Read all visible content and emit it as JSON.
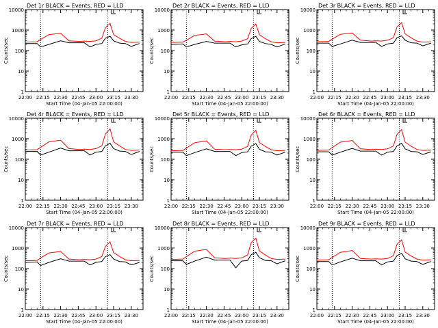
{
  "page": {
    "background": "#ffffff"
  },
  "colors": {
    "events": "#000000",
    "lld": "#ff0000",
    "axis": "#000000"
  },
  "chart_data": [
    {
      "type": "line",
      "title": "Det 1r BLACK = Events, RED = LLD",
      "xlabel": "Start Time (04-Jan-05 22:00:00)",
      "ylabel": "Counts/sec",
      "x": [
        "22:00",
        "22:10",
        "22:13",
        "22:20",
        "22:30",
        "22:37",
        "22:46",
        "22:50",
        "22:55",
        "23:00",
        "23:05",
        "23:08",
        "23:12",
        "23:15",
        "23:20",
        "23:25",
        "23:30",
        "23:37"
      ],
      "series": [
        {
          "name": "Events",
          "color": "#000000",
          "values": [
            220,
            220,
            150,
            200,
            300,
            240,
            240,
            240,
            150,
            200,
            220,
            400,
            500,
            300,
            230,
            220,
            160,
            220
          ]
        },
        {
          "name": "LLD",
          "color": "#ff0000",
          "values": [
            260,
            270,
            350,
            600,
            700,
            300,
            280,
            290,
            280,
            300,
            400,
            1300,
            2100,
            600,
            400,
            280,
            250,
            260
          ]
        }
      ],
      "ylim": [
        1,
        10000
      ],
      "ylog": true,
      "yticks": [
        "1",
        "10",
        "100",
        "1000",
        "10000"
      ],
      "xticks": [
        "22:00",
        "22:15",
        "22:30",
        "22:45",
        "23:00",
        "23:15",
        "23:30"
      ],
      "vlines": [
        "22:13",
        "23:10"
      ],
      "grid": false
    },
    {
      "type": "line",
      "title": "Det 2r BLACK = Events, RED = LLD",
      "xlabel": "Start Time (04-Jan-05 22:00:00)",
      "ylabel": "Counts/sec",
      "x": [
        "22:00",
        "22:10",
        "22:13",
        "22:20",
        "22:30",
        "22:37",
        "22:46",
        "22:50",
        "22:55",
        "23:00",
        "23:05",
        "23:08",
        "23:12",
        "23:15",
        "23:20",
        "23:25",
        "23:30",
        "23:37"
      ],
      "series": [
        {
          "name": "Events",
          "color": "#000000",
          "values": [
            200,
            210,
            150,
            200,
            280,
            230,
            230,
            230,
            150,
            190,
            210,
            380,
            500,
            280,
            220,
            200,
            150,
            210
          ]
        },
        {
          "name": "LLD",
          "color": "#ff0000",
          "values": [
            250,
            260,
            320,
            550,
            650,
            290,
            270,
            280,
            270,
            290,
            380,
            1200,
            2000,
            600,
            380,
            270,
            240,
            250
          ]
        }
      ],
      "ylim": [
        1,
        10000
      ],
      "ylog": true,
      "yticks": [
        "1",
        "10",
        "100",
        "1000",
        "10000"
      ],
      "xticks": [
        "22:00",
        "22:15",
        "22:30",
        "22:45",
        "23:00",
        "23:15",
        "23:30"
      ],
      "vlines": [
        "22:13",
        "23:10"
      ],
      "grid": false
    },
    {
      "type": "line",
      "title": "Det 3r BLACK = Events, RED = LLD",
      "xlabel": "Start Time (04-Jan-05 22:00:00)",
      "ylabel": "Counts/sec",
      "x": [
        "22:00",
        "22:10",
        "22:13",
        "22:20",
        "22:30",
        "22:37",
        "22:46",
        "22:50",
        "22:55",
        "23:00",
        "23:05",
        "23:08",
        "23:12",
        "23:15",
        "23:20",
        "23:25",
        "23:30",
        "23:37"
      ],
      "series": [
        {
          "name": "Events",
          "color": "#000000",
          "values": [
            230,
            230,
            160,
            210,
            320,
            250,
            250,
            250,
            160,
            210,
            230,
            420,
            520,
            320,
            240,
            230,
            170,
            230
          ]
        },
        {
          "name": "LLD",
          "color": "#ff0000",
          "values": [
            270,
            280,
            360,
            620,
            720,
            320,
            290,
            300,
            290,
            320,
            420,
            1400,
            2300,
            650,
            420,
            290,
            260,
            270
          ]
        }
      ],
      "ylim": [
        1,
        10000
      ],
      "ylog": true,
      "yticks": [
        "1",
        "10",
        "100",
        "1000",
        "10000"
      ],
      "xticks": [
        "22:00",
        "22:15",
        "22:30",
        "22:45",
        "23:00",
        "23:15",
        "23:30"
      ],
      "vlines": [
        "22:13",
        "23:10"
      ],
      "grid": false
    },
    {
      "type": "line",
      "title": "Det 4r BLACK = Events, RED = LLD",
      "xlabel": "Start Time (04-Jan-05 22:00:00)",
      "ylabel": "Counts/sec",
      "x": [
        "22:00",
        "22:10",
        "22:13",
        "22:20",
        "22:30",
        "22:37",
        "22:46",
        "22:50",
        "22:55",
        "23:00",
        "23:05",
        "23:08",
        "23:12",
        "23:15",
        "23:20",
        "23:25",
        "23:30",
        "23:37"
      ],
      "series": [
        {
          "name": "Events",
          "color": "#000000",
          "values": [
            240,
            240,
            160,
            220,
            350,
            260,
            260,
            260,
            160,
            220,
            240,
            450,
            600,
            330,
            250,
            240,
            170,
            240
          ]
        },
        {
          "name": "LLD",
          "color": "#ff0000",
          "values": [
            280,
            290,
            380,
            700,
            850,
            330,
            300,
            310,
            300,
            330,
            450,
            1700,
            3000,
            700,
            450,
            300,
            270,
            280
          ]
        }
      ],
      "ylim": [
        1,
        10000
      ],
      "ylog": true,
      "yticks": [
        "1",
        "10",
        "100",
        "1000",
        "10000"
      ],
      "xticks": [
        "22:00",
        "22:15",
        "22:30",
        "22:45",
        "23:00",
        "23:15",
        "23:30"
      ],
      "vlines": [
        "22:13",
        "23:10"
      ],
      "grid": false
    },
    {
      "type": "line",
      "title": "Det 5r BLACK = Events, RED = LLD",
      "xlabel": "Start Time (04-Jan-05 22:00:00)",
      "ylabel": "Counts/sec",
      "x": [
        "22:00",
        "22:10",
        "22:13",
        "22:20",
        "22:30",
        "22:37",
        "22:46",
        "22:50",
        "22:55",
        "23:00",
        "23:05",
        "23:08",
        "23:12",
        "23:15",
        "23:20",
        "23:25",
        "23:30",
        "23:37"
      ],
      "series": [
        {
          "name": "Events",
          "color": "#000000",
          "values": [
            220,
            220,
            150,
            210,
            320,
            240,
            240,
            240,
            150,
            210,
            230,
            430,
            580,
            310,
            230,
            220,
            160,
            220
          ]
        },
        {
          "name": "LLD",
          "color": "#ff0000",
          "values": [
            260,
            270,
            350,
            640,
            780,
            310,
            290,
            300,
            290,
            310,
            420,
            1500,
            2600,
            650,
            420,
            290,
            260,
            270
          ]
        }
      ],
      "ylim": [
        1,
        10000
      ],
      "ylog": true,
      "yticks": [
        "1",
        "10",
        "100",
        "1000",
        "10000"
      ],
      "xticks": [
        "22:00",
        "22:15",
        "22:30",
        "22:45",
        "23:00",
        "23:15",
        "23:30"
      ],
      "vlines": [
        "22:13",
        "23:10"
      ],
      "grid": false
    },
    {
      "type": "line",
      "title": "Det 6r BLACK = Events, RED = LLD",
      "xlabel": "Start Time (04-Jan-05 22:00:00)",
      "ylabel": "Counts/sec",
      "x": [
        "22:00",
        "22:10",
        "22:13",
        "22:20",
        "22:30",
        "22:37",
        "22:46",
        "22:50",
        "22:55",
        "23:00",
        "23:05",
        "23:08",
        "23:12",
        "23:15",
        "23:20",
        "23:25",
        "23:30",
        "23:37"
      ],
      "series": [
        {
          "name": "Events",
          "color": "#000000",
          "values": [
            230,
            230,
            160,
            220,
            340,
            250,
            250,
            250,
            160,
            220,
            240,
            440,
            600,
            320,
            240,
            230,
            170,
            230
          ]
        },
        {
          "name": "LLD",
          "color": "#ff0000",
          "values": [
            270,
            280,
            370,
            680,
            820,
            320,
            300,
            310,
            300,
            320,
            440,
            1600,
            2800,
            680,
            430,
            300,
            270,
            280
          ]
        }
      ],
      "ylim": [
        1,
        10000
      ],
      "ylog": true,
      "yticks": [
        "1",
        "10",
        "100",
        "1000",
        "10000"
      ],
      "xticks": [
        "22:00",
        "22:15",
        "22:30",
        "22:45",
        "23:00",
        "23:15",
        "23:30"
      ],
      "vlines": [
        "22:13",
        "23:10"
      ],
      "grid": false
    },
    {
      "type": "line",
      "title": "Det 7r BLACK = Events, RED = LLD",
      "xlabel": "Start Time (04-Jan-05 22:00:00)",
      "ylabel": "Counts/sec",
      "x": [
        "22:00",
        "22:10",
        "22:13",
        "22:20",
        "22:30",
        "22:37",
        "22:46",
        "22:50",
        "22:55",
        "23:00",
        "23:05",
        "23:08",
        "23:12",
        "23:15",
        "23:20",
        "23:25",
        "23:30",
        "23:37"
      ],
      "series": [
        {
          "name": "Events",
          "color": "#000000",
          "values": [
            200,
            210,
            140,
            200,
            300,
            230,
            230,
            230,
            150,
            200,
            220,
            380,
            480,
            290,
            220,
            210,
            150,
            200
          ]
        },
        {
          "name": "LLD",
          "color": "#ff0000",
          "values": [
            240,
            250,
            330,
            580,
            680,
            290,
            270,
            280,
            270,
            290,
            390,
            1200,
            2000,
            600,
            390,
            270,
            240,
            250
          ]
        }
      ],
      "ylim": [
        1,
        10000
      ],
      "ylog": true,
      "yticks": [
        "1",
        "10",
        "100",
        "1000",
        "10000"
      ],
      "xticks": [
        "22:00",
        "22:15",
        "22:30",
        "22:45",
        "23:00",
        "23:15",
        "23:30"
      ],
      "vlines": [
        "22:13",
        "23:10"
      ],
      "grid": false
    },
    {
      "type": "line",
      "title": "Det 8r BLACK = Events, RED = LLD",
      "xlabel": "Start Time (04-Jan-05 22:00:00)",
      "ylabel": "Counts/sec",
      "x": [
        "22:00",
        "22:10",
        "22:13",
        "22:20",
        "22:30",
        "22:37",
        "22:46",
        "22:50",
        "22:55",
        "23:00",
        "23:05",
        "23:08",
        "23:12",
        "23:15",
        "23:20",
        "23:25",
        "23:30",
        "23:37"
      ],
      "series": [
        {
          "name": "Events",
          "color": "#000000",
          "values": [
            240,
            240,
            160,
            230,
            360,
            260,
            260,
            260,
            110,
            230,
            250,
            470,
            620,
            340,
            250,
            240,
            170,
            240
          ]
        },
        {
          "name": "LLD",
          "color": "#ff0000",
          "values": [
            280,
            290,
            380,
            700,
            860,
            330,
            310,
            320,
            310,
            330,
            460,
            1800,
            3100,
            720,
            460,
            310,
            280,
            290
          ]
        }
      ],
      "ylim": [
        1,
        10000
      ],
      "ylog": true,
      "yticks": [
        "1",
        "10",
        "100",
        "1000",
        "10000"
      ],
      "xticks": [
        "22:00",
        "22:15",
        "22:30",
        "22:45",
        "23:00",
        "23:15",
        "23:30"
      ],
      "vlines": [
        "22:13",
        "23:10"
      ],
      "grid": false
    },
    {
      "type": "line",
      "title": "Det 9r BLACK = Events, RED = LLD",
      "xlabel": "Start Time (04-Jan-05 22:00:00)",
      "ylabel": "Counts/sec",
      "x": [
        "22:00",
        "22:10",
        "22:13",
        "22:20",
        "22:30",
        "22:37",
        "22:46",
        "22:50",
        "22:55",
        "23:00",
        "23:05",
        "23:08",
        "23:12",
        "23:15",
        "23:20",
        "23:25",
        "23:30",
        "23:37"
      ],
      "series": [
        {
          "name": "Events",
          "color": "#000000",
          "values": [
            220,
            220,
            150,
            210,
            320,
            240,
            240,
            240,
            150,
            210,
            230,
            420,
            560,
            300,
            230,
            220,
            160,
            220
          ]
        },
        {
          "name": "LLD",
          "color": "#ff0000",
          "values": [
            260,
            270,
            350,
            620,
            760,
            310,
            290,
            300,
            290,
            310,
            420,
            1500,
            2500,
            640,
            410,
            290,
            260,
            270
          ]
        }
      ],
      "ylim": [
        1,
        10000
      ],
      "ylog": true,
      "yticks": [
        "1",
        "10",
        "100",
        "1000",
        "10000"
      ],
      "xticks": [
        "22:00",
        "22:15",
        "22:30",
        "22:45",
        "23:00",
        "23:15",
        "23:30"
      ],
      "vlines": [
        "22:13",
        "23:10"
      ],
      "grid": false
    }
  ]
}
